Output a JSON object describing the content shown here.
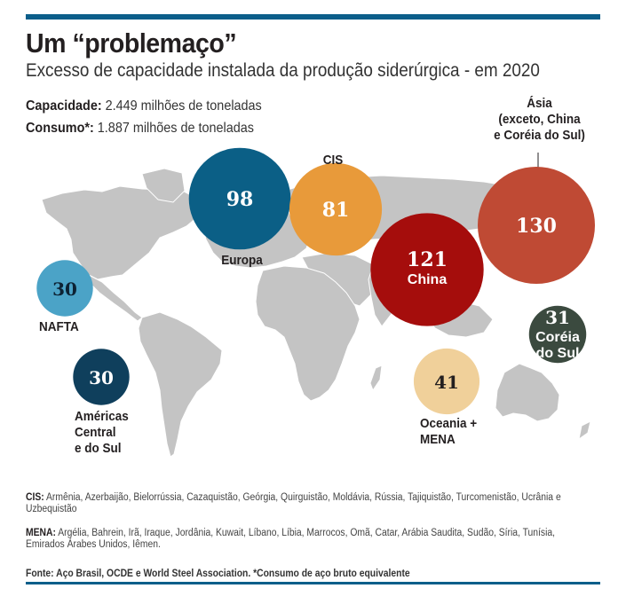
{
  "header": {
    "title": "Um “problemaço”",
    "subtitle": "Excesso de capacidade instalada da produção siderúrgica - em 2020"
  },
  "stats": {
    "capacity_label": "Capacidade:",
    "capacity_value": " 2.449 milhões de toneladas",
    "consumption_label": "Consumo*:",
    "consumption_value": " 1.887 milhões de toneladas"
  },
  "chart_data": {
    "type": "bubble-map",
    "title": "Um “problemaço”",
    "subtitle": "Excesso de capacidade instalada da produção siderúrgica - em 2020",
    "unit": "milhões de toneladas",
    "regions": [
      {
        "name": "Ásia (exceto, China e Coréia do Sul)",
        "value": 130,
        "color": "#bf4a34",
        "text_color": "#ffffff"
      },
      {
        "name": "China",
        "value": 121,
        "color": "#a50d0c",
        "text_color": "#ffffff"
      },
      {
        "name": "Europa",
        "value": 98,
        "color": "#0b5f86",
        "text_color": "#ffffff"
      },
      {
        "name": "CIS",
        "value": 81,
        "color": "#e89a3a",
        "text_color": "#ffffff"
      },
      {
        "name": "Oceania + MENA",
        "value": 41,
        "color": "#f0d09a",
        "text_color": "#231f20"
      },
      {
        "name": "Coréia do Sul",
        "value": 31,
        "color": "#3b4a3f",
        "text_color": "#ffffff"
      },
      {
        "name": "NAFTA",
        "value": 30,
        "color": "#4ba3c7",
        "text_color": "#0d2233"
      },
      {
        "name": "Américas Central e do Sul",
        "value": 30,
        "color": "#0f3f5c",
        "text_color": "#ffffff"
      }
    ]
  },
  "labels": {
    "asia_line1": "Ásia",
    "asia_line2": "(exceto, China",
    "asia_line3": "e Coréia do Sul)",
    "china": "China",
    "europa": "Europa",
    "cis": "CIS",
    "oceania_line1": "Oceania +",
    "oceania_line2": "MENA",
    "korea_line1": "Coréia",
    "korea_line2": "do Sul",
    "nafta": "NAFTA",
    "americas_line1": "Américas",
    "americas_line2": "Central",
    "americas_line3": "e do Sul"
  },
  "notes": {
    "cis_label": "CIS:",
    "cis_text": " Armênia, Azerbaijão, Bielorrússia, Cazaquistão, Geórgia, Quirguistão, Moldávia, Rússia, Tajiquistão, Turcomenistão, Ucrânia e Uzbequistão",
    "mena_label": "MENA:",
    "mena_text": " Argélia, Bahrein, Irã, Iraque, Jordânia, Kuwait, Líbano, Líbia, Marrocos, Omã, Catar, Arábia Saudita, Sudão, Síria, Tunísia, Emirados Árabes Unidos, Iêmen."
  },
  "source": "Fonte: Aço Brasil, OCDE e World Steel Association. *Consumo de aço bruto equivalente"
}
